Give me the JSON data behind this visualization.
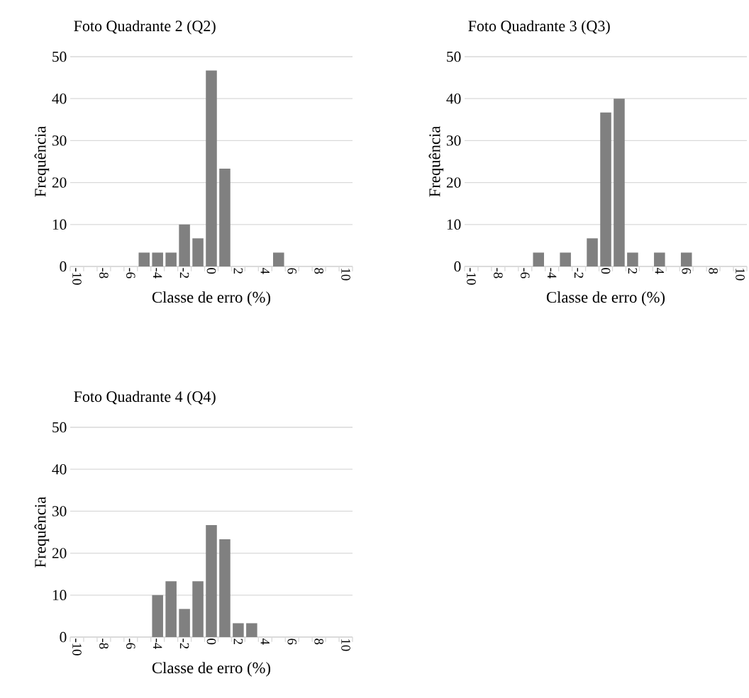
{
  "chart_data": [
    {
      "type": "bar",
      "title": "Foto Quadrante 2 (Q2)",
      "xlabel": "Classe de erro (%)",
      "ylabel": "Frequência",
      "categories": [
        "-10",
        null,
        "-8",
        null,
        "-6",
        null,
        "-4",
        null,
        "-2",
        null,
        "0",
        null,
        "2",
        null,
        "4",
        null,
        "6",
        null,
        "8",
        null,
        "10"
      ],
      "values": [
        0,
        0,
        0,
        0,
        0,
        3.3,
        3.3,
        3.3,
        10,
        6.7,
        46.7,
        23.3,
        0,
        0,
        0,
        3.3,
        0,
        0,
        0,
        0,
        0
      ],
      "color": "#808080",
      "ylim": [
        0,
        50
      ],
      "yticks": [
        0,
        10,
        20,
        30,
        40,
        50
      ],
      "grid": "y"
    },
    {
      "type": "bar",
      "title": "Foto Quadrante 3 (Q3)",
      "xlabel": "Classe de erro (%)",
      "ylabel": "Frequência",
      "categories": [
        "-10",
        null,
        "-8",
        null,
        "-6",
        null,
        "-4",
        null,
        "-2",
        null,
        "0",
        null,
        "2",
        null,
        "4",
        null,
        "6",
        null,
        "8",
        null,
        "10"
      ],
      "values": [
        0,
        0,
        0,
        0,
        0,
        3.3,
        0,
        3.3,
        0,
        6.7,
        36.7,
        40,
        3.3,
        0,
        3.3,
        0,
        3.3,
        0,
        0,
        0,
        0
      ],
      "color": "#808080",
      "ylim": [
        0,
        50
      ],
      "yticks": [
        0,
        10,
        20,
        30,
        40,
        50
      ],
      "grid": "y"
    },
    {
      "type": "bar",
      "title": "Foto Quadrante 4 (Q4)",
      "xlabel": "Classe de erro (%)",
      "ylabel": "Frequência",
      "categories": [
        "-10",
        null,
        "-8",
        null,
        "-6",
        null,
        "-4",
        null,
        "-2",
        null,
        "0",
        null,
        "2",
        null,
        "4",
        null,
        "6",
        null,
        "8",
        null,
        "10"
      ],
      "values": [
        0,
        0,
        0,
        0,
        0,
        0,
        10,
        13.3,
        6.7,
        13.3,
        26.7,
        23.3,
        3.3,
        3.3,
        0,
        0,
        0,
        0,
        0,
        0,
        0
      ],
      "color": "#808080",
      "ylim": [
        0,
        50
      ],
      "yticks": [
        0,
        10,
        20,
        30,
        40,
        50
      ],
      "grid": "y"
    }
  ]
}
